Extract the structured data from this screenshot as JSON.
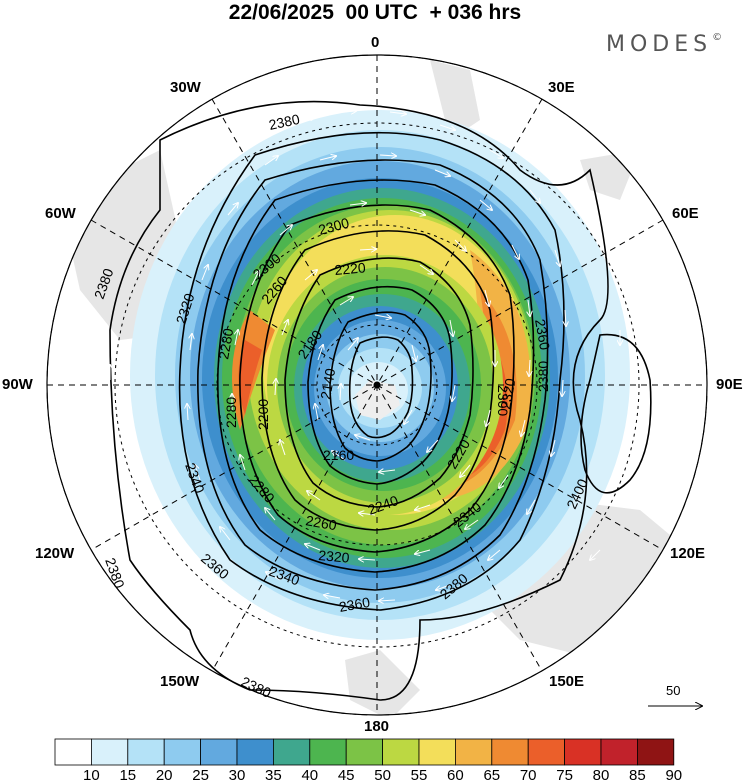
{
  "title": "22/06/2025  00 UTC  + 036 hrs",
  "brand": "MODES",
  "brand_mark": "©",
  "longitude_labels": {
    "lon_0": "0",
    "lon_30e": "30E",
    "lon_60e": "60E",
    "lon_90e": "90E",
    "lon_120e": "120E",
    "lon_150e": "150E",
    "lon_180": "180",
    "lon_150w": "150W",
    "lon_120w": "120W",
    "lon_90w": "90W",
    "lon_60w": "60W",
    "lon_30w": "30W"
  },
  "contour_labels": [
    "2380",
    "2360",
    "2340",
    "2320",
    "2300",
    "2280",
    "2260",
    "2240",
    "2220",
    "2200",
    "2180",
    "2160",
    "2140",
    "2400"
  ],
  "reference_vector": "50",
  "colorbar": {
    "ticks": [
      "10",
      "15",
      "20",
      "25",
      "30",
      "35",
      "40",
      "45",
      "50",
      "55",
      "60",
      "65",
      "70",
      "75",
      "80",
      "85",
      "90"
    ],
    "colors": [
      "#ffffff",
      "#d9f1fb",
      "#b4e2f7",
      "#8ecbef",
      "#62a9df",
      "#3e8fcd",
      "#3fa78e",
      "#4db54f",
      "#7cc346",
      "#bcd842",
      "#f3de5a",
      "#f2b345",
      "#ef8a32",
      "#eb5f2a",
      "#d93125",
      "#c1222b",
      "#8f1414"
    ]
  },
  "colors": {
    "ocean": "#ffffff",
    "land": "#e6e6e6",
    "contour": "#000000",
    "wind_vector": "#ffffff"
  }
}
